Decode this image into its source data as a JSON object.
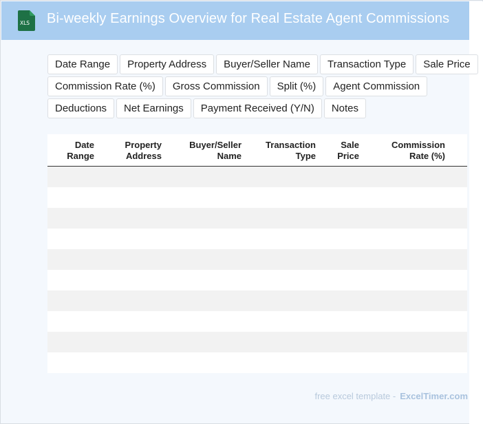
{
  "header": {
    "title": "Bi-weekly Earnings Overview for Real Estate Agent Commissions",
    "icon": "xls-file-icon",
    "icon_text": "XLS",
    "bg_color": "#a9cdf0",
    "icon_color": "#1e7145"
  },
  "field_tags": [
    [
      "Date Range",
      "Property Address",
      "Buyer/Seller Name",
      "Transaction Type",
      "Sale Price"
    ],
    [
      "Commission Rate (%)",
      "Gross Commission",
      "Split (%)",
      "Agent Commission"
    ],
    [
      "Deductions",
      "Net Earnings",
      "Payment Received (Y/N)",
      "Notes"
    ]
  ],
  "table": {
    "columns": [
      [
        "Date",
        "Range"
      ],
      [
        "Property",
        "Address"
      ],
      [
        "Buyer/Seller",
        "Name"
      ],
      [
        "Transaction",
        "Type"
      ],
      [
        "Sale",
        "Price"
      ],
      [
        "Commission",
        "Rate (%)"
      ]
    ],
    "empty_rows": 10
  },
  "footer": {
    "text": "free excel template -",
    "brand": "ExcelTimer.com"
  }
}
